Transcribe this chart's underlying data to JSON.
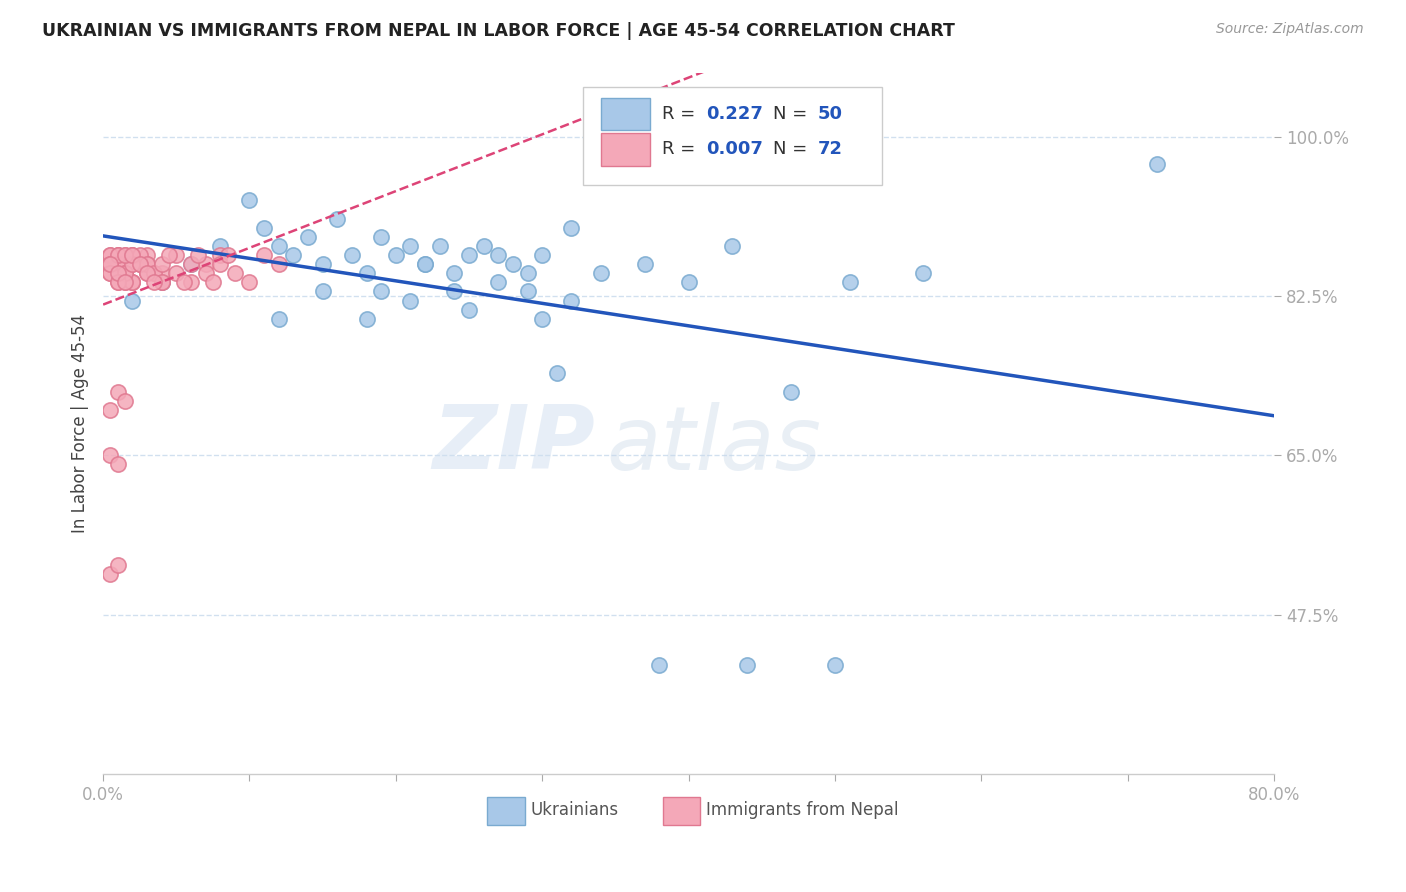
{
  "title": "UKRAINIAN VS IMMIGRANTS FROM NEPAL IN LABOR FORCE | AGE 45-54 CORRELATION CHART",
  "source": "Source: ZipAtlas.com",
  "ylabel": "In Labor Force | Age 45-54",
  "xlim": [
    0.0,
    0.8
  ],
  "ylim": [
    0.3,
    1.07
  ],
  "yticks": [
    0.475,
    0.65,
    0.825,
    1.0
  ],
  "ytick_labels": [
    "47.5%",
    "65.0%",
    "82.5%",
    "100.0%"
  ],
  "xticks": [
    0.0,
    0.1,
    0.2,
    0.3,
    0.4,
    0.5,
    0.6,
    0.7,
    0.8
  ],
  "xtick_labels": [
    "0.0%",
    "",
    "",
    "",
    "",
    "",
    "",
    "",
    "80.0%"
  ],
  "legend_r_blue": "0.227",
  "legend_n_blue": "50",
  "legend_r_pink": "0.007",
  "legend_n_pink": "72",
  "watermark": "ZIPatlas",
  "blue_color": "#a8c8e8",
  "pink_color": "#f4a8b8",
  "blue_edge_color": "#7aaad0",
  "pink_edge_color": "#e07890",
  "blue_line_color": "#2255bb",
  "pink_line_color": "#dd4477",
  "blue_scatter_x": [
    0.02,
    0.04,
    0.06,
    0.08,
    0.1,
    0.11,
    0.12,
    0.13,
    0.14,
    0.15,
    0.16,
    0.17,
    0.18,
    0.19,
    0.2,
    0.21,
    0.22,
    0.23,
    0.24,
    0.25,
    0.26,
    0.27,
    0.28,
    0.29,
    0.3,
    0.31,
    0.32,
    0.34,
    0.37,
    0.4,
    0.43,
    0.47,
    0.51,
    0.56,
    0.72,
    0.12,
    0.15,
    0.18,
    0.21,
    0.24,
    0.27,
    0.3,
    0.22,
    0.19,
    0.25,
    0.29,
    0.32,
    0.38,
    0.44,
    0.5
  ],
  "blue_scatter_y": [
    0.82,
    0.84,
    0.86,
    0.88,
    0.93,
    0.9,
    0.88,
    0.87,
    0.89,
    0.86,
    0.91,
    0.87,
    0.85,
    0.89,
    0.87,
    0.88,
    0.86,
    0.88,
    0.85,
    0.87,
    0.88,
    0.87,
    0.86,
    0.85,
    0.87,
    0.74,
    0.9,
    0.85,
    0.86,
    0.84,
    0.88,
    0.72,
    0.84,
    0.85,
    0.97,
    0.8,
    0.83,
    0.8,
    0.82,
    0.83,
    0.84,
    0.8,
    0.86,
    0.83,
    0.81,
    0.83,
    0.82,
    0.42,
    0.42,
    0.42
  ],
  "pink_scatter_x": [
    0.005,
    0.01,
    0.015,
    0.02,
    0.025,
    0.03,
    0.035,
    0.04,
    0.005,
    0.01,
    0.015,
    0.02,
    0.025,
    0.03,
    0.005,
    0.01,
    0.015,
    0.02,
    0.005,
    0.01,
    0.015,
    0.02,
    0.005,
    0.01,
    0.015,
    0.005,
    0.01,
    0.005,
    0.01,
    0.02,
    0.03,
    0.04,
    0.05,
    0.06,
    0.07,
    0.08,
    0.09,
    0.1,
    0.11,
    0.12,
    0.005,
    0.01,
    0.015,
    0.02,
    0.025,
    0.03,
    0.035,
    0.04,
    0.005,
    0.01,
    0.015,
    0.02,
    0.005,
    0.01,
    0.015,
    0.005,
    0.01,
    0.015,
    0.02,
    0.025,
    0.03,
    0.035,
    0.04,
    0.045,
    0.05,
    0.055,
    0.06,
    0.065,
    0.07,
    0.075,
    0.08,
    0.085
  ],
  "pink_scatter_y": [
    0.86,
    0.87,
    0.85,
    0.84,
    0.86,
    0.87,
    0.85,
    0.84,
    0.87,
    0.86,
    0.84,
    0.87,
    0.86,
    0.85,
    0.85,
    0.84,
    0.87,
    0.86,
    0.86,
    0.87,
    0.85,
    0.84,
    0.7,
    0.72,
    0.71,
    0.65,
    0.64,
    0.52,
    0.53,
    0.87,
    0.86,
    0.85,
    0.87,
    0.84,
    0.86,
    0.87,
    0.85,
    0.84,
    0.87,
    0.86,
    0.87,
    0.86,
    0.85,
    0.84,
    0.87,
    0.86,
    0.85,
    0.84,
    0.86,
    0.87,
    0.85,
    0.86,
    0.85,
    0.84,
    0.87,
    0.86,
    0.85,
    0.84,
    0.87,
    0.86,
    0.85,
    0.84,
    0.86,
    0.87,
    0.85,
    0.84,
    0.86,
    0.87,
    0.85,
    0.84,
    0.86,
    0.87
  ]
}
